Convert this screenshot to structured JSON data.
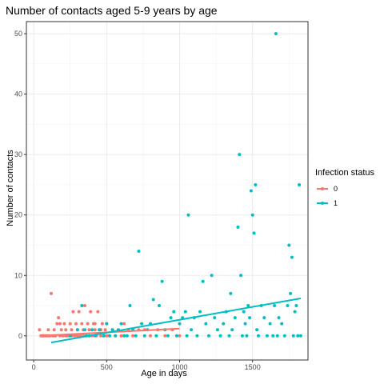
{
  "chart_data": {
    "type": "scatter",
    "title": "Number of contacts aged 5-9 years by age",
    "xlabel": "Age in days",
    "ylabel": "Number of contacts",
    "xlim": [
      -50,
      1880
    ],
    "ylim": [
      -4,
      52
    ],
    "x_ticks": [
      0,
      500,
      1000,
      1500
    ],
    "y_ticks": [
      0,
      10,
      20,
      30,
      40,
      50
    ],
    "x_tick_labels": [
      "0",
      "500",
      "1000",
      "1500"
    ],
    "y_tick_labels": [
      "0",
      "10",
      "20",
      "30",
      "40",
      "50"
    ],
    "grid": true,
    "legend": {
      "title": "Infection status",
      "placement": "right",
      "entries": [
        {
          "label": "0",
          "color": "#F8766D"
        },
        {
          "label": "1",
          "color": "#00BFC4"
        }
      ]
    },
    "series": [
      {
        "label": "0",
        "color": "#F8766D",
        "points": [
          [
            40,
            1
          ],
          [
            50,
            0
          ],
          [
            60,
            0
          ],
          [
            70,
            0
          ],
          [
            80,
            0
          ],
          [
            90,
            0
          ],
          [
            100,
            0
          ],
          [
            110,
            0
          ],
          [
            120,
            7
          ],
          [
            130,
            0
          ],
          [
            140,
            1
          ],
          [
            150,
            0
          ],
          [
            160,
            2
          ],
          [
            170,
            3
          ],
          [
            180,
            0
          ],
          [
            190,
            1
          ],
          [
            200,
            0
          ],
          [
            210,
            2
          ],
          [
            220,
            1
          ],
          [
            230,
            0
          ],
          [
            240,
            0
          ],
          [
            250,
            2
          ],
          [
            260,
            1
          ],
          [
            270,
            4
          ],
          [
            280,
            0
          ],
          [
            290,
            2
          ],
          [
            300,
            1
          ],
          [
            310,
            4
          ],
          [
            320,
            0
          ],
          [
            330,
            2
          ],
          [
            340,
            1
          ],
          [
            350,
            5
          ],
          [
            360,
            0
          ],
          [
            370,
            2
          ],
          [
            380,
            1
          ],
          [
            390,
            4
          ],
          [
            400,
            0
          ],
          [
            410,
            2
          ],
          [
            420,
            1
          ],
          [
            430,
            0
          ],
          [
            440,
            4
          ],
          [
            450,
            1
          ],
          [
            460,
            0
          ],
          [
            470,
            2
          ],
          [
            480,
            0
          ],
          [
            490,
            1
          ],
          [
            500,
            2
          ],
          [
            520,
            0
          ],
          [
            540,
            1
          ],
          [
            560,
            0
          ],
          [
            580,
            1
          ],
          [
            600,
            0
          ],
          [
            620,
            2
          ],
          [
            650,
            1
          ],
          [
            680,
            0
          ],
          [
            720,
            1
          ],
          [
            760,
            1
          ],
          [
            800,
            0
          ],
          [
            850,
            1
          ],
          [
            900,
            0
          ],
          [
            950,
            1
          ],
          [
            1000,
            0
          ],
          [
            60,
            0
          ],
          [
            100,
            1
          ],
          [
            140,
            0
          ],
          [
            180,
            2
          ],
          [
            220,
            0
          ],
          [
            260,
            0
          ],
          [
            300,
            0
          ],
          [
            340,
            0
          ],
          [
            380,
            0
          ],
          [
            420,
            2
          ],
          [
            460,
            1
          ],
          [
            500,
            0
          ]
        ],
        "trend": [
          [
            120,
            0.1
          ],
          [
            1000,
            1.2
          ]
        ]
      },
      {
        "label": "1",
        "color": "#00BFC4",
        "points": [
          [
            250,
            0
          ],
          [
            300,
            1
          ],
          [
            330,
            5
          ],
          [
            350,
            1
          ],
          [
            360,
            0
          ],
          [
            380,
            0
          ],
          [
            400,
            1
          ],
          [
            420,
            0
          ],
          [
            450,
            1
          ],
          [
            480,
            0
          ],
          [
            500,
            2
          ],
          [
            520,
            0
          ],
          [
            540,
            1
          ],
          [
            560,
            0
          ],
          [
            580,
            1
          ],
          [
            600,
            2
          ],
          [
            620,
            0
          ],
          [
            640,
            0
          ],
          [
            660,
            5
          ],
          [
            680,
            1
          ],
          [
            700,
            0
          ],
          [
            720,
            14
          ],
          [
            740,
            2
          ],
          [
            760,
            0
          ],
          [
            780,
            1
          ],
          [
            800,
            2
          ],
          [
            820,
            6
          ],
          [
            840,
            0
          ],
          [
            860,
            5
          ],
          [
            880,
            9
          ],
          [
            900,
            1
          ],
          [
            920,
            0
          ],
          [
            940,
            3
          ],
          [
            960,
            4
          ],
          [
            980,
            0
          ],
          [
            1000,
            2
          ],
          [
            1020,
            3
          ],
          [
            1040,
            4
          ],
          [
            1050,
            0
          ],
          [
            1060,
            20
          ],
          [
            1080,
            1
          ],
          [
            1100,
            3
          ],
          [
            1120,
            0
          ],
          [
            1140,
            4
          ],
          [
            1160,
            9
          ],
          [
            1180,
            2
          ],
          [
            1200,
            0
          ],
          [
            1220,
            10
          ],
          [
            1240,
            3
          ],
          [
            1260,
            1
          ],
          [
            1280,
            0
          ],
          [
            1300,
            2
          ],
          [
            1320,
            4
          ],
          [
            1340,
            0
          ],
          [
            1350,
            7
          ],
          [
            1360,
            1
          ],
          [
            1380,
            3
          ],
          [
            1400,
            18
          ],
          [
            1410,
            30
          ],
          [
            1420,
            10
          ],
          [
            1430,
            0
          ],
          [
            1440,
            4
          ],
          [
            1450,
            2
          ],
          [
            1460,
            0
          ],
          [
            1470,
            5
          ],
          [
            1480,
            3
          ],
          [
            1490,
            24
          ],
          [
            1500,
            20
          ],
          [
            1510,
            17
          ],
          [
            1520,
            25
          ],
          [
            1530,
            1
          ],
          [
            1540,
            0
          ],
          [
            1560,
            5
          ],
          [
            1580,
            3
          ],
          [
            1600,
            0
          ],
          [
            1620,
            2
          ],
          [
            1640,
            0
          ],
          [
            1650,
            5
          ],
          [
            1660,
            50
          ],
          [
            1670,
            0
          ],
          [
            1680,
            3
          ],
          [
            1700,
            2
          ],
          [
            1720,
            0
          ],
          [
            1740,
            5
          ],
          [
            1750,
            15
          ],
          [
            1760,
            7
          ],
          [
            1770,
            13
          ],
          [
            1780,
            0
          ],
          [
            1790,
            4
          ],
          [
            1800,
            5
          ],
          [
            1810,
            0
          ],
          [
            1820,
            25
          ],
          [
            1830,
            0
          ]
        ],
        "trend": [
          [
            120,
            -1.1
          ],
          [
            1830,
            6.2
          ]
        ]
      }
    ]
  }
}
